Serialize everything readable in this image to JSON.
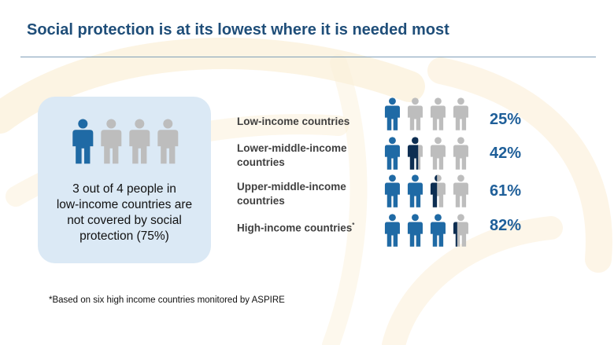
{
  "title": "Social protection is at its lowest where it is needed most",
  "colors": {
    "covered": "#1f6aa5",
    "covered_dark": "#0d2e52",
    "uncovered": "#bdbdbd",
    "title": "#1f4e79",
    "callout_bg": "#dbe9f5"
  },
  "callout": {
    "text_line1": "3 out of 4 people in",
    "text_line2": "low-income countries are",
    "text_line3": "not covered by social",
    "text_line4": "protection (75%)",
    "covered_fraction": 0.25
  },
  "rows": [
    {
      "label_line1": "Low-income countries",
      "label_line2": "",
      "marker": "",
      "coverage": 0.25,
      "pct": "25%"
    },
    {
      "label_line1": "Lower-middle-income",
      "label_line2": "countries",
      "marker": "",
      "coverage": 0.42,
      "pct": "42%"
    },
    {
      "label_line1": "Upper-middle-income",
      "label_line2": "countries",
      "marker": "",
      "coverage": 0.61,
      "pct": "61%"
    },
    {
      "label_line1": "High-income countries",
      "label_line2": "",
      "marker": "*",
      "coverage": 0.82,
      "pct": "82%"
    }
  ],
  "footnote": "*Based on six high income countries monitored by ASPIRE"
}
